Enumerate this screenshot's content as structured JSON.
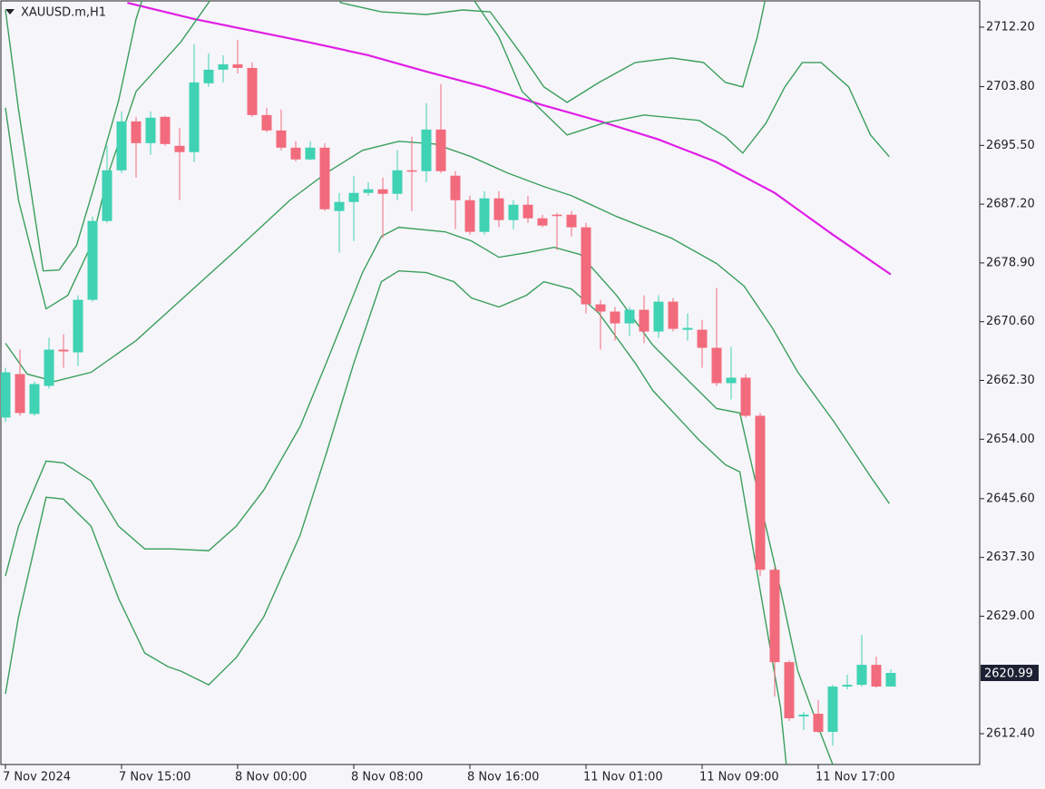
{
  "chart_data": {
    "type": "candlestick",
    "title": "XAUUSD.m,H1",
    "categories": [
      "7 Nov 2024",
      null,
      null,
      null,
      null,
      null,
      null,
      null,
      "7 Nov 15:00",
      null,
      null,
      null,
      null,
      null,
      null,
      null,
      "8 Nov 00:00",
      null,
      null,
      null,
      null,
      null,
      null,
      null,
      "8 Nov 08:00",
      null,
      null,
      null,
      null,
      null,
      null,
      null,
      "8 Nov 16:00",
      null,
      null,
      null,
      null,
      null,
      null,
      null,
      "11 Nov 01:00",
      null,
      null,
      null,
      null,
      null,
      null,
      null,
      "11 Nov 09:00",
      null,
      null,
      null,
      null,
      null,
      null,
      null,
      "11 Nov 17:00",
      null,
      null,
      null,
      null,
      null
    ],
    "open": [
      2657.06,
      2663.2,
      2657.57,
      2661.53,
      2666.65,
      2666.27,
      2673.69,
      2684.82,
      2691.98,
      2698.89,
      2695.82,
      2699.53,
      2695.44,
      2694.55,
      2704.27,
      2706.19,
      2706.95,
      2706.44,
      2699.79,
      2697.61,
      2695.18,
      2693.52,
      2695.18,
      2686.23,
      2687.51,
      2688.79,
      2689.3,
      2688.66,
      2691.98,
      2691.86,
      2697.74,
      2691.22,
      2687.76,
      2683.29,
      2688.02,
      2684.95,
      2687.12,
      2685.2,
      2685.71,
      2685.71,
      2683.93,
      2673.05,
      2672.03,
      2670.36,
      2672.28,
      2669.21,
      2673.43,
      2669.46,
      2669.46,
      2666.91,
      2661.92,
      2662.69,
      2657.31,
      2635.56,
      2622.51,
      2614.84,
      2615.22,
      2612.66,
      2619.06,
      2619.31,
      2622.13,
      2619.06
    ],
    "high": [
      2664.1,
      2666.65,
      2662.17,
      2668.32,
      2668.83,
      2674.33,
      2685.46,
      2695.44,
      2700.3,
      2699.53,
      2700.3,
      2699.66,
      2697.99,
      2709.77,
      2708.49,
      2708.23,
      2710.41,
      2707.21,
      2700.81,
      2700.56,
      2696.08,
      2696.08,
      2695.82,
      2688.79,
      2691.22,
      2690.32,
      2690.96,
      2694.8,
      2696.72,
      2701.45,
      2704.14,
      2691.86,
      2688.4,
      2689.04,
      2689.04,
      2687.76,
      2688.4,
      2685.71,
      2685.97,
      2686.23,
      2684.56,
      2673.69,
      2672.67,
      2672.67,
      2674.33,
      2674.33,
      2673.95,
      2671.77,
      2670.87,
      2675.35,
      2667.04,
      2663.2,
      2657.7,
      2635.95,
      2622.77,
      2615.47,
      2617.14,
      2619.31,
      2620.72,
      2626.35,
      2623.28,
      2621.49
    ],
    "low": [
      2656.4,
      2657.31,
      2657.31,
      2661.15,
      2664.09,
      2664.35,
      2673.43,
      2684.56,
      2691.6,
      2690.96,
      2694.16,
      2695.44,
      2687.76,
      2693.14,
      2703.76,
      2704.4,
      2705.67,
      2699.53,
      2697.36,
      2694.8,
      2693.26,
      2693.39,
      2686.23,
      2680.34,
      2682.0,
      2688.4,
      2682.39,
      2687.76,
      2686.23,
      2690.32,
      2691.6,
      2683.67,
      2682.9,
      2682.9,
      2683.93,
      2683.67,
      2684.56,
      2683.93,
      2680.73,
      2682.65,
      2671.77,
      2666.65,
      2667.93,
      2668.57,
      2667.55,
      2668.32,
      2669.21,
      2667.93,
      2664.09,
      2661.53,
      2659.61,
      2657.06,
      2634.67,
      2617.65,
      2614.2,
      2612.92,
      2612.53,
      2610.74,
      2618.67,
      2619.06,
      2618.93,
      2619.06
    ],
    "close": [
      2663.45,
      2657.7,
      2661.79,
      2666.65,
      2666.4,
      2673.69,
      2684.82,
      2691.98,
      2698.89,
      2695.82,
      2699.41,
      2695.69,
      2694.55,
      2704.4,
      2706.19,
      2706.95,
      2706.44,
      2699.79,
      2697.61,
      2695.18,
      2693.52,
      2695.18,
      2686.48,
      2687.51,
      2688.79,
      2689.3,
      2688.66,
      2691.98,
      2691.86,
      2697.74,
      2691.86,
      2687.76,
      2683.29,
      2688.02,
      2684.95,
      2687.12,
      2685.2,
      2684.18,
      2685.58,
      2683.93,
      2673.05,
      2672.03,
      2670.36,
      2672.28,
      2669.21,
      2673.43,
      2669.59,
      2669.72,
      2666.91,
      2661.92,
      2662.69,
      2657.31,
      2635.56,
      2622.51,
      2614.58,
      2615.09,
      2612.66,
      2619.06,
      2619.31,
      2622.13,
      2619.06,
      2620.99
    ],
    "up_color": "#3fd2b3",
    "down_color": "#f26b7c",
    "lines": [
      {
        "color": "#e01ee6",
        "x": [
          8.4,
          13,
          17,
          21,
          25,
          29,
          33,
          37,
          41,
          45,
          49,
          53,
          57,
          61
        ],
        "values": [
          2715.65,
          2713.35,
          2711.69,
          2710.03,
          2708.23,
          2705.93,
          2703.76,
          2701.2,
          2698.89,
          2696.33,
          2693.14,
          2688.79,
          2682.9,
          2677.27
        ]
      },
      {
        "color": "#3a9f5c",
        "x": [
          0,
          0.9,
          2.6,
          3.7,
          4.9,
          6.2,
          7.8,
          9,
          9.5,
          9.6,
          22.8,
          23.1,
          25.9,
          29,
          31.5,
          33.4,
          35.6,
          37.1,
          38.7,
          40.9,
          43.4,
          45.9,
          48.1,
          49.6,
          50.8,
          51.8,
          52.4
        ],
        "values": [
          2714.63,
          2700.56,
          2677.78,
          2677.91,
          2681.37,
          2690.32,
          2701.84,
          2713.35,
          2716.55,
          null,
          2716.55,
          2715.65,
          2714.37,
          2713.99,
          2714.63,
          2714.37,
          2708.23,
          2703.76,
          2701.58,
          2704.4,
          2707.21,
          2707.85,
          2707.21,
          2704.4,
          2703.76,
          2710.79,
          2716.55
        ]
      },
      {
        "color": "#3a9f5c",
        "x": [
          0,
          0.9,
          2.8,
          4.3,
          5.9,
          7.1,
          9,
          12.1,
          14.3,
          14.4,
          32.1,
          34,
          35.6,
          38.7,
          41.2,
          44,
          47.8,
          49.6,
          50.8,
          52.4,
          53.7,
          54.9,
          56.2,
          58.1,
          59.6,
          60.9
        ],
        "values": [
          2700.81,
          2687.76,
          2672.41,
          2674.33,
          2681.37,
          2691.6,
          2703.12,
          2710.15,
          2716.55,
          null,
          2716.55,
          2710.79,
          2703.12,
          2696.97,
          2698.64,
          2699.79,
          2699.02,
          2696.72,
          2694.42,
          2698.64,
          2703.76,
          2707.21,
          2707.21,
          2703.76,
          2696.97,
          2693.9
        ]
      },
      {
        "color": "#3a9f5c",
        "x": [
          0,
          1.5,
          3.4,
          5.9,
          9,
          12.1,
          15.9,
          19.6,
          22.1,
          24.6,
          27.1,
          29.6,
          32.1,
          34.6,
          37.1,
          39,
          42.1,
          45.9,
          49,
          50.9,
          52.8,
          54.6,
          57.1,
          59.6,
          60.9
        ],
        "values": [
          2667.55,
          2663.2,
          2662.17,
          2663.45,
          2667.93,
          2673.69,
          2680.73,
          2687.76,
          2691.6,
          2694.8,
          2696.08,
          2695.69,
          2693.9,
          2691.6,
          2689.68,
          2688.4,
          2685.46,
          2682.39,
          2678.81,
          2675.61,
          2669.85,
          2663.45,
          2656.42,
          2648.74,
          2644.9
        ]
      },
      {
        "color": "#3a9f5c",
        "x": [
          0,
          0.9,
          2.8,
          4,
          5.9,
          7.8,
          9.6,
          11.5,
          14,
          15.9,
          17.8,
          20.3,
          22.1,
          24.6,
          25.9,
          27.1,
          30.3,
          32.1,
          34,
          35.9,
          37.8,
          39.6,
          42.1,
          44.6,
          47.1,
          49,
          50.6,
          52.1,
          53.4,
          54.6,
          56.2,
          57
        ],
        "values": [
          2634.67,
          2641.7,
          2650.91,
          2650.66,
          2648.1,
          2641.7,
          2638.5,
          2638.5,
          2638.25,
          2641.7,
          2646.82,
          2655.78,
          2664.73,
          2677.53,
          2682.65,
          2683.93,
          2683.29,
          2682.01,
          2679.7,
          2680.34,
          2681.11,
          2680.09,
          2674.33,
          2667.29,
          2662.17,
          2658.33,
          2657.7,
          2644.26,
          2632.75,
          2621.23,
          2612.28,
          2608.05
        ]
      },
      {
        "color": "#3a9f5c",
        "x": [
          0,
          0.9,
          2.8,
          4,
          5.9,
          7.8,
          9.6,
          11.2,
          12.1,
          14,
          15.9,
          17.8,
          20.3,
          22.1,
          24,
          25.9,
          27.1,
          29,
          30.9,
          32.1,
          34,
          35.9,
          37.1,
          39,
          40.9,
          43.4,
          44.6,
          47.8,
          49.6,
          50.6,
          52.1,
          53.4,
          53.8
        ],
        "values": [
          2618.03,
          2628.91,
          2645.8,
          2645.54,
          2641.7,
          2631.47,
          2623.79,
          2621.87,
          2621.23,
          2619.31,
          2623.15,
          2628.91,
          2640.42,
          2651.94,
          2664.73,
          2676.25,
          2677.78,
          2677.53,
          2676.25,
          2673.95,
          2672.67,
          2674.33,
          2676.25,
          2675.22,
          2671.77,
          2664.73,
          2660.89,
          2653.86,
          2650.4,
          2649.38,
          2631.47,
          2616.12,
          2608.05
        ]
      }
    ],
    "current_price": 2620.99,
    "xlim": [
      -0.3125,
      67.125
    ],
    "ylim": [
      2608.05,
      2715.91
    ],
    "yticks": [
      {
        "value": 2712.2,
        "label": "2712.20"
      },
      {
        "value": 2703.8,
        "label": "2703.80"
      },
      {
        "value": 2695.5,
        "label": "2695.50"
      },
      {
        "value": 2687.2,
        "label": "2687.20"
      },
      {
        "value": 2678.9,
        "label": "2678.90"
      },
      {
        "value": 2670.6,
        "label": "2670.60"
      },
      {
        "value": 2662.3,
        "label": "2662.30"
      },
      {
        "value": 2654,
        "label": "2654.00"
      },
      {
        "value": 2645.6,
        "label": "2645.60"
      },
      {
        "value": 2637.3,
        "label": "2637.30"
      },
      {
        "value": 2629,
        "label": "2629.00"
      },
      {
        "value": 2612.4,
        "label": "2612.40"
      }
    ]
  }
}
